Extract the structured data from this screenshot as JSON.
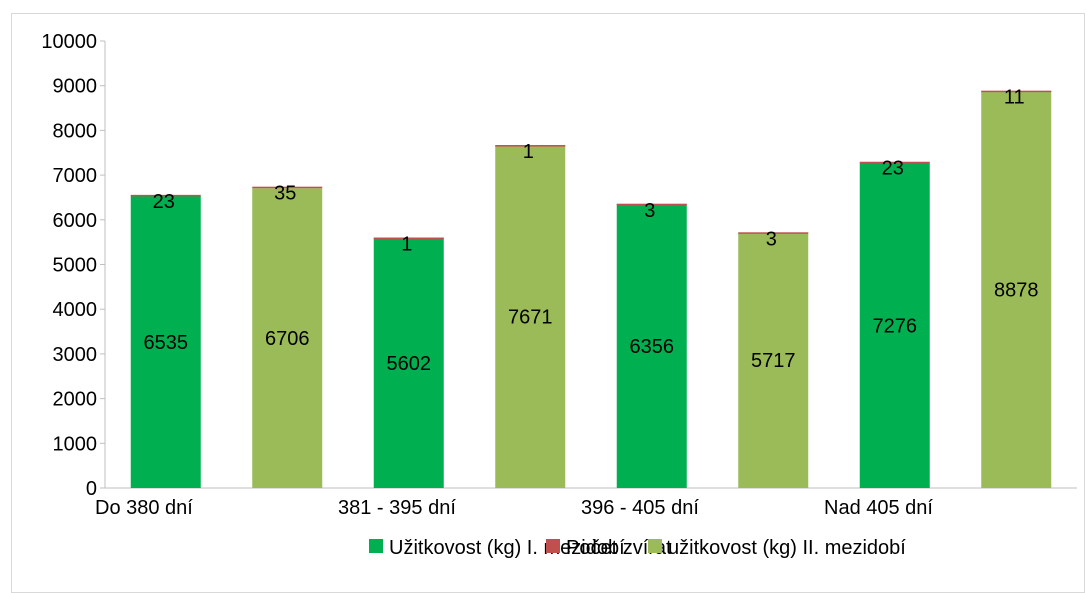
{
  "chart_data": {
    "type": "bar",
    "stacked": true,
    "ylim": [
      0,
      10000
    ],
    "ytick_step": 1000,
    "grid": false,
    "legend_position": "bottom",
    "groups": [
      "Do 380 dní",
      "381 - 395 dní",
      "396 - 405 dní",
      "Nad 405 dní"
    ],
    "bars": [
      {
        "group": "Do 380 dní",
        "period": "I",
        "performance": 6535,
        "count": 23
      },
      {
        "group": "Do 380 dní",
        "period": "II",
        "performance": 6706,
        "count": 35
      },
      {
        "group": "381 - 395 dní",
        "period": "I",
        "performance": 5602,
        "count": 1
      },
      {
        "group": "381 - 395 dní",
        "period": "II",
        "performance": 7671,
        "count": 1
      },
      {
        "group": "396 - 405 dní",
        "period": "I",
        "performance": 6356,
        "count": 3
      },
      {
        "group": "396 - 405 dní",
        "period": "II",
        "performance": 5717,
        "count": 3
      },
      {
        "group": "Nad 405 dní",
        "period": "I",
        "performance": 7276,
        "count": 23
      },
      {
        "group": "Nad 405 dní",
        "period": "II",
        "performance": 8878,
        "count": 11
      }
    ],
    "series": [
      {
        "name": "Užitkovost (kg) I. mezidobí",
        "color": "#00b050"
      },
      {
        "name": "Počet zvířat",
        "color": "#c0504d"
      },
      {
        "name": "užitkovost (kg) II. mezidobí",
        "color": "#9bbb59"
      }
    ]
  }
}
